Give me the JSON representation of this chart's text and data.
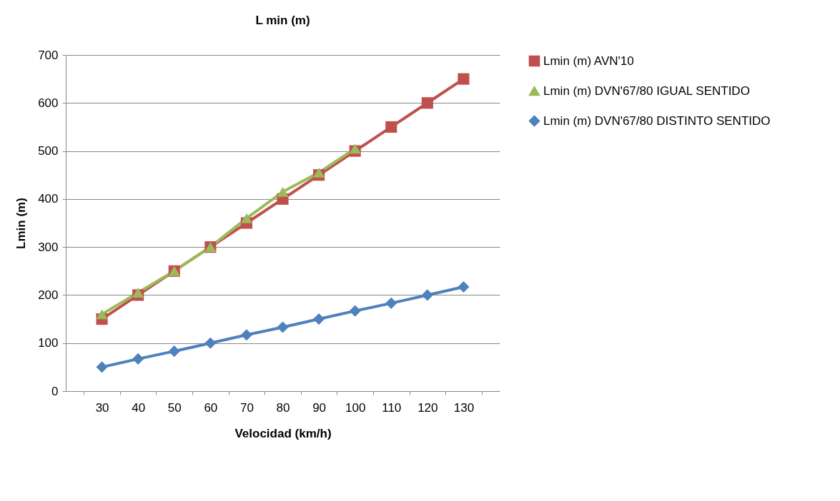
{
  "chart_data": {
    "type": "line",
    "title": "L min (m)",
    "xlabel": "Velocidad (km/h)",
    "ylabel": "Lmin (m)",
    "categories": [
      "30",
      "40",
      "50",
      "60",
      "70",
      "80",
      "90",
      "100",
      "110",
      "120",
      "130"
    ],
    "series": [
      {
        "name": "Lmin (m) AVN'10",
        "color": "#c0504d",
        "marker": "square",
        "values": [
          150,
          200,
          250,
          300,
          350,
          400,
          450,
          500,
          550,
          600,
          650
        ]
      },
      {
        "name": "Lmin (m) DVN'67/80 IGUAL SENTIDO",
        "color": "#9bbb59",
        "marker": "triangle",
        "values": [
          160,
          205,
          250,
          300,
          360,
          415,
          455,
          505,
          null,
          null,
          null
        ]
      },
      {
        "name": "Lmin (m) DVN'67/80 DISTINTO SENTIDO",
        "color": "#4f81bd",
        "marker": "diamond",
        "values": [
          50,
          67,
          83,
          100,
          117,
          133,
          150,
          167,
          183,
          200,
          217
        ]
      }
    ],
    "ylim": [
      0,
      700
    ],
    "yticks": [
      0,
      100,
      200,
      300,
      400,
      500,
      600,
      700
    ],
    "grid": "y",
    "legend": "right",
    "line_style": "solid"
  }
}
